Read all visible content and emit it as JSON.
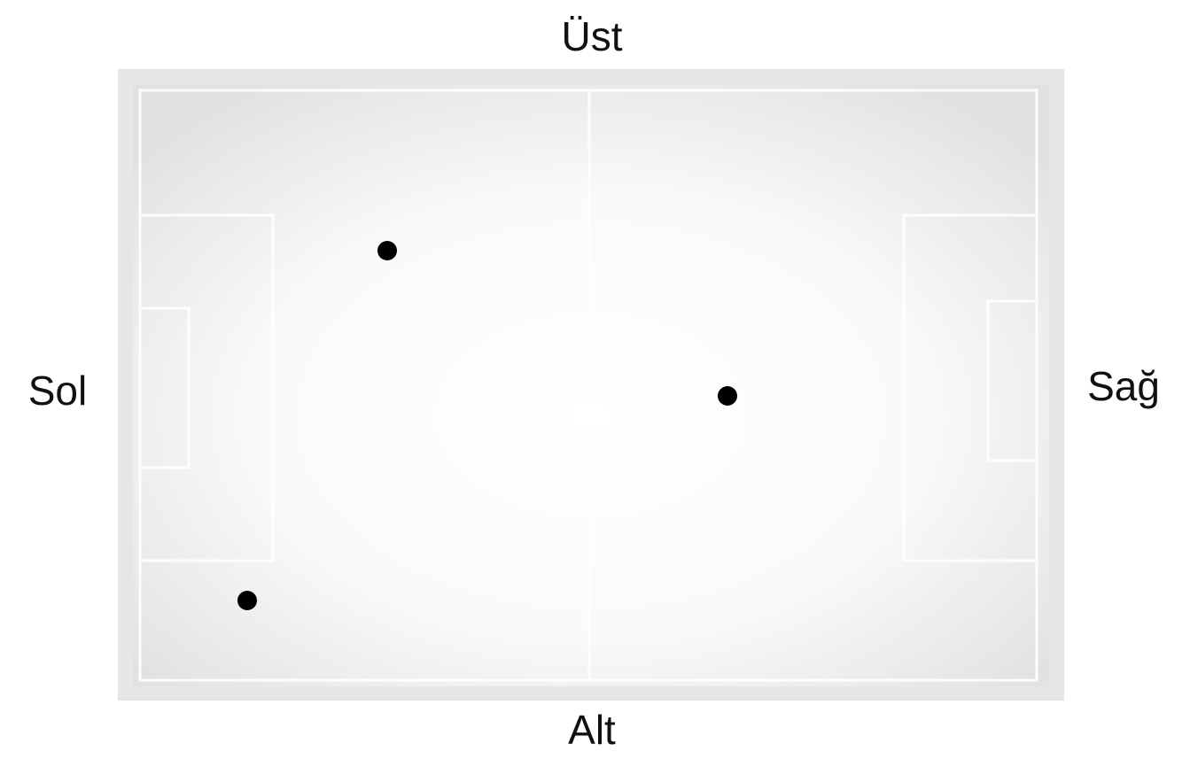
{
  "labels": {
    "top": "Üst",
    "bottom": "Alt",
    "left": "Sol",
    "right": "Sağ"
  }
}
